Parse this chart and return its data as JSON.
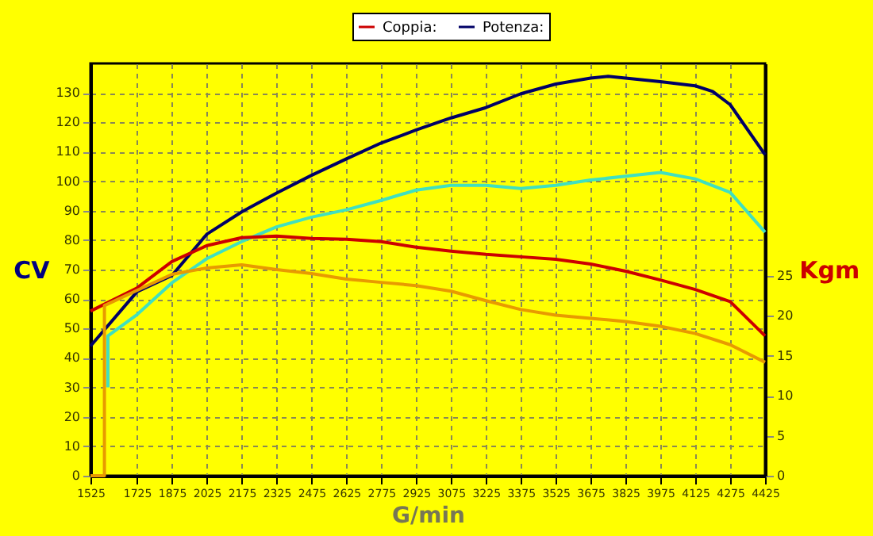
{
  "chart_data": {
    "type": "line",
    "xlabel": "G/min",
    "ylabel": "CV",
    "y2label": "Kgm",
    "xlim": [
      1525,
      4425
    ],
    "xticks": [
      1525,
      1725,
      1875,
      2025,
      2175,
      2325,
      2475,
      2625,
      2775,
      2925,
      3075,
      3225,
      3375,
      3525,
      3675,
      3825,
      3975,
      4125,
      4275,
      4425
    ],
    "ylim": [
      0,
      140
    ],
    "yticks": [
      0,
      10,
      20,
      30,
      40,
      50,
      60,
      70,
      80,
      90,
      100,
      110,
      120,
      130
    ],
    "y2lim": [
      0,
      51.6
    ],
    "y2ticks": [
      0,
      5,
      10,
      15,
      20,
      25
    ],
    "grid": true,
    "legend": "top",
    "line_style": "solid",
    "marker": "none",
    "series": [
      {
        "name": "Coppia:",
        "color": "#cc0000",
        "axis": "y2",
        "x": [
          1525,
          1725,
          1875,
          2025,
          2175,
          2325,
          2475,
          2625,
          2775,
          2925,
          3075,
          3225,
          3375,
          3525,
          3675,
          3825,
          3975,
          4125,
          4275,
          4425
        ],
        "values": [
          20.6,
          23.5,
          26.8,
          28.8,
          29.8,
          30.0,
          29.7,
          29.6,
          29.3,
          28.6,
          28.1,
          27.7,
          27.4,
          27.1,
          26.5,
          25.6,
          24.5,
          23.3,
          21.8,
          17.5
        ]
      },
      {
        "name": "Potenza:",
        "color": "#000066",
        "x": [
          1525,
          1725,
          1875,
          2025,
          2175,
          2325,
          2475,
          2625,
          2775,
          2925,
          3075,
          3225,
          3375,
          3525,
          3675,
          3750,
          3825,
          3975,
          4125,
          4200,
          4275,
          4425
        ],
        "values": [
          44,
          62.5,
          68,
          82,
          89.6,
          96,
          102,
          107.6,
          113,
          117.4,
          121.5,
          125,
          129.7,
          133,
          135,
          135.6,
          135,
          133.8,
          132.4,
          130.5,
          126,
          109
        ]
      },
      {
        "color": "#40e0c0",
        "x": [
          1600,
          1600,
          1725,
          1875,
          2025,
          2175,
          2325,
          2475,
          2625,
          2775,
          2925,
          3075,
          3225,
          3375,
          3525,
          3675,
          3825,
          3975,
          4125,
          4275,
          4425
        ],
        "values": [
          30,
          47.5,
          54.7,
          65.5,
          73.7,
          79.5,
          84.5,
          87.8,
          90.3,
          93.5,
          97,
          98.6,
          98.6,
          97.5,
          98.6,
          100.4,
          101.7,
          103,
          100.8,
          96.2,
          82.7
        ]
      },
      {
        "color": "#e89a00",
        "axis": "y2",
        "x": [
          1525,
          1585,
          1585,
          1725,
          1875,
          2025,
          2175,
          2325,
          2475,
          2625,
          2775,
          2925,
          3075,
          3225,
          3375,
          3525,
          3675,
          3825,
          3975,
          4125,
          4275,
          4425
        ],
        "values": [
          0,
          0,
          21.3,
          23.2,
          25.2,
          26.0,
          26.4,
          25.8,
          25.3,
          24.6,
          24.2,
          23.8,
          23.1,
          21.9,
          20.8,
          20.1,
          19.7,
          19.3,
          18.7,
          17.8,
          16.4,
          14.2
        ]
      }
    ]
  }
}
